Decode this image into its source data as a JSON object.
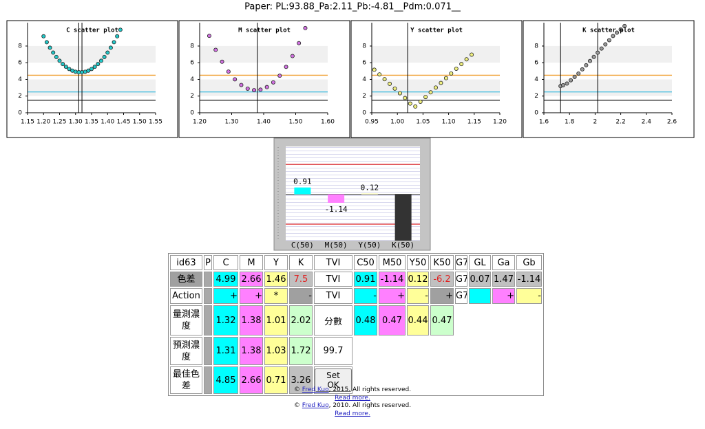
{
  "header": {
    "title": "Paper: PL:93.88_Pa:2.11_Pb:-4.81__Pdm:0.071__"
  },
  "chart_data": [
    {
      "type": "scatter",
      "title": "C scatter plot",
      "color": "#22c8c8",
      "x": [
        1.2,
        1.21,
        1.22,
        1.23,
        1.24,
        1.25,
        1.26,
        1.27,
        1.28,
        1.29,
        1.3,
        1.31,
        1.32,
        1.33,
        1.34,
        1.35,
        1.36,
        1.37,
        1.38,
        1.39,
        1.4,
        1.41,
        1.42,
        1.43,
        1.44
      ],
      "values": [
        9.17,
        8.46,
        7.8,
        7.21,
        6.69,
        6.23,
        5.84,
        5.51,
        5.25,
        5.05,
        4.92,
        4.86,
        4.86,
        4.92,
        5.05,
        5.25,
        5.51,
        5.84,
        6.23,
        6.69,
        7.21,
        7.8,
        8.46,
        9.17,
        9.95
      ],
      "xlim": [
        1.15,
        1.55
      ],
      "ylim": [
        0,
        10.8
      ],
      "xticks": [
        1.15,
        {
          "value": 1.2,
          "label": "1.20"
        },
        1.25,
        {
          "value": 1.3,
          "label": "1.30"
        },
        1.35,
        {
          "value": 1.4,
          "label": "1.40"
        },
        1.45,
        {
          "value": 1.5,
          "label": "1.50"
        },
        1.55
      ],
      "yticks": [
        0,
        2,
        4,
        6,
        8
      ],
      "hlines": [
        {
          "value": 4.5,
          "color": "#f0a030"
        },
        {
          "value": 2.5,
          "color": "#50c0e0"
        },
        {
          "value": 1.5,
          "color": "#333333"
        }
      ],
      "vlines": [
        1.31,
        1.32
      ]
    },
    {
      "type": "scatter",
      "title": "M scatter plot",
      "color": "#d070e0",
      "x": [
        1.23,
        1.25,
        1.27,
        1.29,
        1.31,
        1.33,
        1.35,
        1.37,
        1.39,
        1.41,
        1.43,
        1.45,
        1.47,
        1.49,
        1.51,
        1.53
      ],
      "values": [
        9.22,
        7.54,
        6.12,
        4.94,
        4.01,
        3.33,
        2.89,
        2.71,
        2.77,
        3.08,
        3.64,
        4.44,
        5.5,
        6.8,
        8.35,
        10.15
      ],
      "xlim": [
        1.2,
        1.6
      ],
      "ylim": [
        0,
        10.8
      ],
      "xticks": [
        {
          "value": 1.2,
          "label": "1.20"
        },
        {
          "value": 1.3,
          "label": "1.30"
        },
        {
          "value": 1.4,
          "label": "1.40"
        },
        {
          "value": 1.5,
          "label": "1.50"
        },
        {
          "value": 1.6,
          "label": "1.60"
        }
      ],
      "yticks": [
        0,
        2,
        4,
        6,
        8
      ],
      "hlines": [
        {
          "value": 4.5,
          "color": "#f0a030"
        },
        {
          "value": 2.5,
          "color": "#50c0e0"
        },
        {
          "value": 1.5,
          "color": "#333333"
        }
      ],
      "vlines": [
        1.38
      ]
    },
    {
      "type": "scatter",
      "title": "Y scatter plot",
      "color": "#f0f080",
      "x": [
        0.955,
        0.965,
        0.975,
        0.985,
        0.995,
        1.005,
        1.015,
        1.025,
        1.035,
        1.045,
        1.055,
        1.065,
        1.075,
        1.085,
        1.095,
        1.105,
        1.115,
        1.125,
        1.135,
        1.145
      ],
      "values": [
        5.16,
        4.6,
        4.03,
        3.47,
        2.9,
        2.34,
        1.77,
        1.1,
        0.75,
        1.32,
        1.89,
        2.45,
        3.02,
        3.58,
        4.15,
        4.71,
        5.28,
        5.84,
        6.41,
        6.97
      ],
      "xlim": [
        0.95,
        1.2
      ],
      "ylim": [
        0,
        10.8
      ],
      "xticks": [
        0.95,
        {
          "value": 1.0,
          "label": "1.00"
        },
        1.05,
        {
          "value": 1.1,
          "label": "1.10"
        },
        1.15,
        {
          "value": 1.2,
          "label": "1.20"
        }
      ],
      "yticks": [
        0,
        2,
        4,
        6,
        8
      ],
      "hlines": [
        {
          "value": 4.5,
          "color": "#f0a030"
        },
        {
          "value": 2.5,
          "color": "#50c0e0"
        },
        {
          "value": 1.5,
          "color": "#333333"
        }
      ],
      "vlines": [
        1.02
      ]
    },
    {
      "type": "scatter",
      "title": "K scatter plot",
      "color": "#999999",
      "x": [
        1.73,
        1.75,
        1.78,
        1.81,
        1.84,
        1.87,
        1.9,
        1.93,
        1.96,
        1.99,
        2.02,
        2.05,
        2.08,
        2.11,
        2.14,
        2.17,
        2.2,
        2.23
      ],
      "values": [
        3.2,
        3.3,
        3.5,
        3.9,
        4.3,
        4.7,
        5.2,
        5.7,
        6.2,
        6.7,
        7.2,
        7.7,
        8.2,
        8.7,
        9.2,
        9.6,
        10.0,
        10.4
      ],
      "xlim": [
        1.6,
        2.6
      ],
      "ylim": [
        0,
        10.8
      ],
      "xticks": [
        1.6,
        1.8,
        2,
        2.2,
        2.4,
        2.6
      ],
      "yticks": [
        0,
        2,
        4,
        6,
        8
      ],
      "hlines": [
        {
          "value": 4.5,
          "color": "#f0a030"
        },
        {
          "value": 2.5,
          "color": "#50c0e0"
        },
        {
          "value": 1.5,
          "color": "#333333"
        }
      ],
      "vlines": [
        1.73,
        2.02
      ]
    },
    {
      "type": "bar",
      "categories": [
        "C(50)",
        "M(50)",
        "Y(50)",
        "K(50)"
      ],
      "values": [
        0.91,
        -1.14,
        0.12,
        -6.2
      ],
      "colors": [
        "#00ffff",
        "#ff80ff",
        "#ffffc0",
        "#333333"
      ],
      "labeled": [
        true,
        true,
        true,
        false
      ],
      "ylim": [
        -6.2,
        6.4
      ],
      "hlines": [
        {
          "value": 4,
          "color": "#e02020"
        },
        {
          "value": -4,
          "color": "#e02020"
        }
      ]
    }
  ],
  "table": {
    "columns": [
      "id63",
      "P",
      "C",
      "M",
      "Y",
      "K",
      "TVI",
      "C50",
      "M50",
      "Y50",
      "K50",
      "G7",
      "GL",
      "Ga",
      "Gb"
    ],
    "rows": [
      {
        "label": "色差",
        "cells": [
          "4.99",
          "2.66",
          "1.46",
          "7.5",
          "TVI",
          "0.91",
          "-1.14",
          "0.12",
          "-6.2",
          "G7",
          "0.07",
          "1.47",
          "-1.14"
        ]
      },
      {
        "label": "Action",
        "cells": [
          "+",
          "+",
          "*",
          "-",
          "TVI",
          "-",
          "+",
          "-",
          "+",
          "G7",
          null,
          "+",
          "-"
        ]
      },
      {
        "label": "量測濃度",
        "cells": [
          "1.32",
          "1.38",
          "1.01",
          "2.02",
          "分數",
          "0.48",
          "0.47",
          "0.44",
          "0.47"
        ]
      },
      {
        "label": "預測濃度",
        "cells": [
          "1.31",
          "1.38",
          "1.03",
          "1.72",
          "99.7"
        ]
      },
      {
        "label": "最佳色差",
        "cells": [
          "4.85",
          "2.66",
          "0.71",
          "3.26"
        ],
        "button": "Set OK"
      }
    ]
  },
  "footer": [
    {
      "prefix": "©",
      "link": "Fred Kuo",
      "suffix": ", 2015. All rights reserved.",
      "more": "Read more."
    },
    {
      "prefix": "©",
      "link": "Fred Kuo",
      "suffix": ", 2010. All rights reserved.",
      "more": "Read more."
    }
  ]
}
